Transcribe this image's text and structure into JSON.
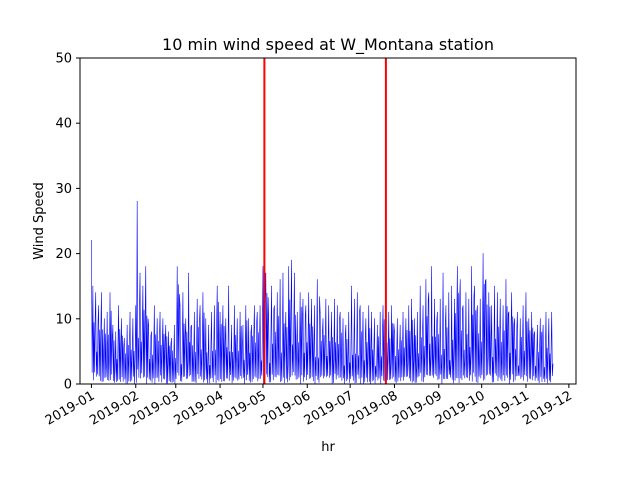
{
  "chart_data": {
    "type": "line",
    "title": "10 min wind speed at W_Montana station",
    "xlabel": "hr",
    "ylabel": "Wind Speed",
    "ylim": [
      0,
      50
    ],
    "xlim": [
      "2018-12-24",
      "2019-12-06"
    ],
    "x_ticks": [
      "2019-01",
      "2019-02",
      "2019-03",
      "2019-04",
      "2019-05",
      "2019-06",
      "2019-07",
      "2019-08",
      "2019-09",
      "2019-10",
      "2019-11",
      "2019-12"
    ],
    "x_tick_dates": [
      "2019-01-01",
      "2019-02-01",
      "2019-03-01",
      "2019-04-01",
      "2019-05-01",
      "2019-06-01",
      "2019-07-01",
      "2019-08-01",
      "2019-09-01",
      "2019-10-01",
      "2019-11-01",
      "2019-12-01"
    ],
    "y_ticks": [
      0,
      10,
      20,
      30,
      40,
      50
    ],
    "grid": false,
    "series_color": "#0000ff",
    "vline_color": "#ff0000",
    "vlines": [
      "2019-05-02",
      "2019-07-26"
    ],
    "series": [
      {
        "x": [
          "2019-01-01",
          "2019-01-02",
          "2019-01-04",
          "2019-01-06",
          "2019-01-08",
          "2019-01-10",
          "2019-01-12",
          "2019-01-14",
          "2019-01-16",
          "2019-01-18",
          "2019-01-20",
          "2019-01-22",
          "2019-01-24",
          "2019-01-26",
          "2019-01-28",
          "2019-01-30",
          "2019-02-01",
          "2019-02-02",
          "2019-02-04",
          "2019-02-06",
          "2019-02-08",
          "2019-02-10",
          "2019-02-12",
          "2019-02-14",
          "2019-02-16",
          "2019-02-18",
          "2019-02-20",
          "2019-02-22",
          "2019-02-24",
          "2019-02-26",
          "2019-02-28",
          "2019-03-02",
          "2019-03-04",
          "2019-03-06",
          "2019-03-08",
          "2019-03-10",
          "2019-03-12",
          "2019-03-14",
          "2019-03-16",
          "2019-03-18",
          "2019-03-20",
          "2019-03-22",
          "2019-03-24",
          "2019-03-26",
          "2019-03-28",
          "2019-03-30",
          "2019-04-01",
          "2019-04-03",
          "2019-04-05",
          "2019-04-07",
          "2019-04-09",
          "2019-04-11",
          "2019-04-13",
          "2019-04-15",
          "2019-04-17",
          "2019-04-19",
          "2019-04-21",
          "2019-04-23",
          "2019-04-25",
          "2019-04-27",
          "2019-04-29",
          "2019-05-01",
          "2019-05-03",
          "2019-05-05",
          "2019-05-07",
          "2019-05-09",
          "2019-05-11",
          "2019-05-13",
          "2019-05-15",
          "2019-05-17",
          "2019-05-19",
          "2019-05-21",
          "2019-05-23",
          "2019-05-25",
          "2019-05-27",
          "2019-05-29",
          "2019-05-31",
          "2019-06-02",
          "2019-06-04",
          "2019-06-06",
          "2019-06-08",
          "2019-06-10",
          "2019-06-12",
          "2019-06-14",
          "2019-06-16",
          "2019-06-18",
          "2019-06-20",
          "2019-06-22",
          "2019-06-24",
          "2019-06-26",
          "2019-06-28",
          "2019-06-30",
          "2019-07-02",
          "2019-07-04",
          "2019-07-06",
          "2019-07-08",
          "2019-07-10",
          "2019-07-12",
          "2019-07-14",
          "2019-07-16",
          "2019-07-18",
          "2019-07-20",
          "2019-07-22",
          "2019-07-24",
          "2019-07-26",
          "2019-07-28",
          "2019-07-30",
          "2019-08-01",
          "2019-08-03",
          "2019-08-05",
          "2019-08-07",
          "2019-08-09",
          "2019-08-11",
          "2019-08-13",
          "2019-08-15",
          "2019-08-17",
          "2019-08-19",
          "2019-08-21",
          "2019-08-23",
          "2019-08-25",
          "2019-08-27",
          "2019-08-29",
          "2019-08-31",
          "2019-09-02",
          "2019-09-04",
          "2019-09-06",
          "2019-09-08",
          "2019-09-10",
          "2019-09-12",
          "2019-09-14",
          "2019-09-16",
          "2019-09-18",
          "2019-09-20",
          "2019-09-22",
          "2019-09-24",
          "2019-09-26",
          "2019-09-28",
          "2019-09-30",
          "2019-10-02",
          "2019-10-04",
          "2019-10-06",
          "2019-10-08",
          "2019-10-10",
          "2019-10-12",
          "2019-10-14",
          "2019-10-16",
          "2019-10-18",
          "2019-10-20",
          "2019-10-22",
          "2019-10-24",
          "2019-10-26",
          "2019-10-28",
          "2019-10-30",
          "2019-11-01",
          "2019-11-03",
          "2019-11-05",
          "2019-11-07",
          "2019-11-09",
          "2019-11-11",
          "2019-11-13",
          "2019-11-15",
          "2019-11-17",
          "2019-11-19"
        ],
        "y": [
          22,
          15,
          14,
          12,
          14,
          10,
          11,
          14,
          9,
          8,
          12,
          10,
          7,
          9,
          11,
          10,
          12,
          28,
          17,
          15,
          18,
          9,
          8,
          12,
          10,
          11,
          10,
          9,
          8,
          7,
          9,
          18,
          12,
          14,
          10,
          17,
          9,
          11,
          13,
          12,
          14,
          10,
          9,
          11,
          12,
          15,
          11,
          12,
          10,
          15,
          9,
          12,
          10,
          11,
          9,
          12,
          10,
          9,
          12,
          11,
          12,
          18,
          17,
          10,
          15,
          12,
          14,
          16,
          17,
          11,
          18,
          19,
          17,
          11,
          14,
          13,
          12,
          14,
          13,
          12,
          16,
          11,
          10,
          13,
          12,
          11,
          13,
          12,
          11,
          10,
          9,
          11,
          15,
          13,
          14,
          12,
          11,
          10,
          12,
          11,
          10,
          9,
          11,
          12,
          10,
          11,
          12,
          8,
          10,
          9,
          11,
          10,
          12,
          13,
          10,
          11,
          15,
          12,
          16,
          14,
          18,
          13,
          11,
          13,
          17,
          12,
          14,
          15,
          13,
          18,
          16,
          12,
          14,
          13,
          18,
          15,
          12,
          13,
          20,
          16,
          14,
          12,
          15,
          14,
          13,
          12,
          16,
          11,
          14,
          10,
          11,
          10,
          12,
          14,
          10,
          11,
          8,
          9,
          10,
          9,
          11,
          10,
          11
        ]
      }
    ]
  }
}
